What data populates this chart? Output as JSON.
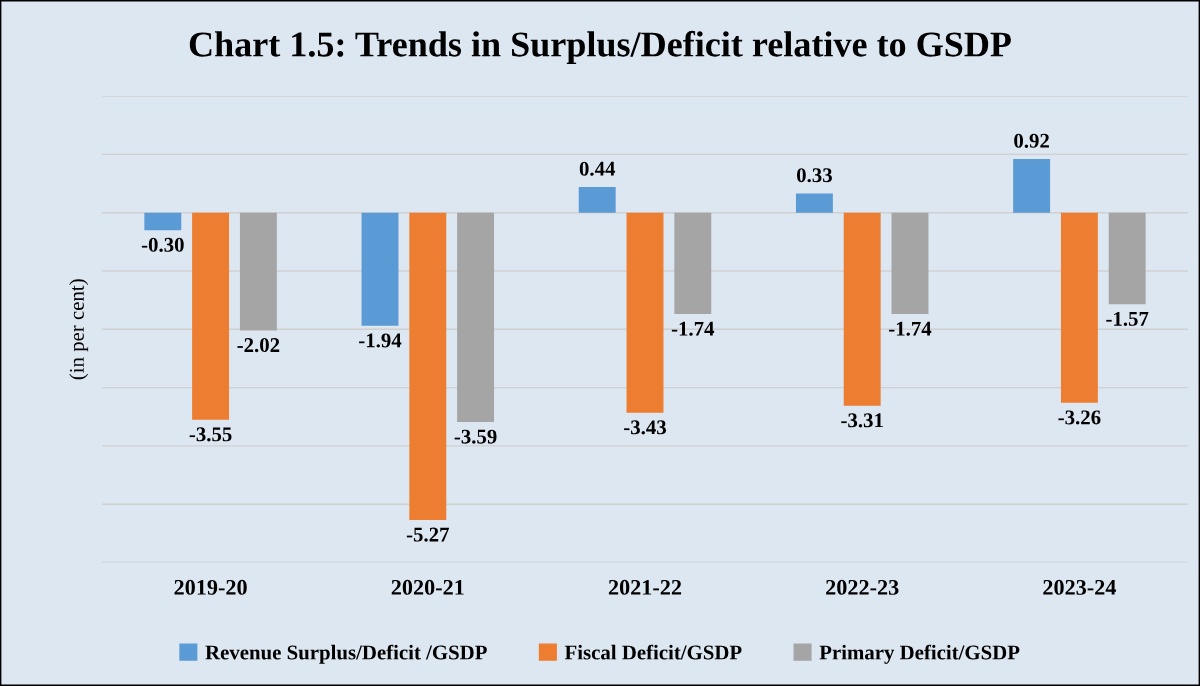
{
  "chart_data": {
    "type": "bar",
    "title": "Chart 1.5: Trends in Surplus/Deficit relative to GSDP",
    "ylabel": "(in per cent)",
    "categories": [
      "2019-20",
      "2020-21",
      "2021-22",
      "2022-23",
      "2023-24"
    ],
    "series": [
      {
        "name": "Revenue Surplus/Deficit /GSDP",
        "color": "#5b9bd5",
        "values": [
          -0.3,
          -1.94,
          0.44,
          0.33,
          0.92
        ],
        "value_labels": [
          "-0.30",
          "-1.94",
          "0.44",
          "0.33",
          "0.92"
        ]
      },
      {
        "name": "Fiscal Deficit/GSDP",
        "color": "#ed7d31",
        "values": [
          -3.55,
          -5.27,
          -3.43,
          -3.31,
          -3.26
        ],
        "value_labels": [
          "-3.55",
          "-5.27",
          "-3.43",
          "-3.31",
          "-3.26"
        ]
      },
      {
        "name": "Primary Deficit/GSDP",
        "color": "#a5a5a5",
        "values": [
          -2.02,
          -3.59,
          -1.74,
          -1.74,
          -1.57
        ],
        "value_labels": [
          "-2.02",
          "-3.59",
          "-1.74",
          "-1.74",
          "-1.57"
        ]
      }
    ],
    "ylim": [
      -6,
      2
    ],
    "yticks": [
      {
        "value": -6,
        "label": null
      },
      {
        "value": -5,
        "label": null
      },
      {
        "value": -4,
        "label": null
      },
      {
        "value": -3,
        "label": null
      },
      {
        "value": -2,
        "label": null
      },
      {
        "value": -1,
        "label": null
      },
      {
        "value": 0,
        "label": null
      },
      {
        "value": 1,
        "label": null
      },
      {
        "value": 2,
        "label": null
      }
    ],
    "tick_labels": "x",
    "grid": "y",
    "legend": "bottom"
  }
}
